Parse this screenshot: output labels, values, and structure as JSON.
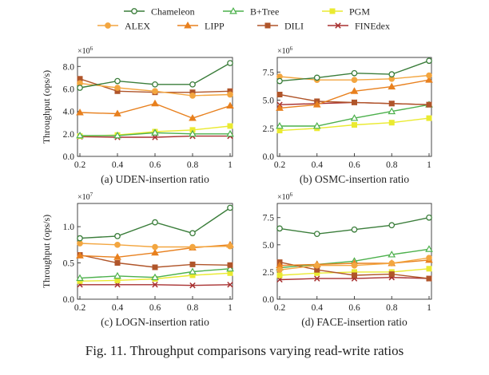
{
  "legend": [
    {
      "name": "Chameleon",
      "color": "#3a7d3a",
      "marker": "circle"
    },
    {
      "name": "B+Tree",
      "color": "#4cb04c",
      "marker": "triangle"
    },
    {
      "name": "PGM",
      "color": "#eaea30",
      "marker": "square"
    },
    {
      "name": "ALEX",
      "color": "#f3a640",
      "marker": "circle"
    },
    {
      "name": "LIPP",
      "color": "#e8801e",
      "marker": "triangle"
    },
    {
      "name": "DILI",
      "color": "#b0552a",
      "marker": "square"
    },
    {
      "name": "FINEdex",
      "color": "#a83030",
      "marker": "x"
    }
  ],
  "caption": "Fig. 11.   Throughput comparisons varying read-write ratios",
  "chart_data": [
    {
      "type": "line",
      "title": "(a) UDEN-insertion ratio",
      "xlabel": "(a) UDEN-insertion ratio",
      "ylabel": "Throughput (ops/s)",
      "multiplier": "×10",
      "exponent": "6",
      "x": [
        0.2,
        0.4,
        0.6,
        0.8,
        1.0
      ],
      "xticks": [
        "0.2",
        "0.4",
        "0.6",
        "0.8",
        "1"
      ],
      "ylim": [
        0,
        8.8
      ],
      "yticks": [
        0,
        2,
        4,
        6,
        8
      ],
      "yticklabels": [
        "0.0",
        "2.0",
        "4.0",
        "6.0",
        "8.0"
      ],
      "series": [
        {
          "name": "Chameleon",
          "values": [
            6.1,
            6.7,
            6.4,
            6.4,
            8.3
          ]
        },
        {
          "name": "B+Tree",
          "values": [
            1.85,
            1.85,
            2.1,
            2.0,
            2.0
          ]
        },
        {
          "name": "PGM",
          "values": [
            1.8,
            1.9,
            2.2,
            2.35,
            2.7
          ]
        },
        {
          "name": "ALEX",
          "values": [
            6.5,
            6.1,
            5.8,
            5.4,
            5.5
          ]
        },
        {
          "name": "LIPP",
          "values": [
            3.9,
            3.8,
            4.7,
            3.4,
            4.5
          ]
        },
        {
          "name": "DILI",
          "values": [
            6.9,
            5.8,
            5.7,
            5.7,
            5.8
          ]
        },
        {
          "name": "FINEdex",
          "values": [
            1.75,
            1.7,
            1.7,
            1.8,
            1.8
          ]
        }
      ]
    },
    {
      "type": "line",
      "title": "(b) OSMC-insertion ratio",
      "xlabel": "(b) OSMC-insertion ratio",
      "ylabel": "",
      "multiplier": "×10",
      "exponent": "6",
      "x": [
        0.2,
        0.4,
        0.6,
        0.8,
        1.0
      ],
      "xticks": [
        "0.2",
        "0.4",
        "0.6",
        "0.8",
        "1"
      ],
      "ylim": [
        0,
        8.8
      ],
      "yticks": [
        0,
        2.5,
        5,
        7.5
      ],
      "yticklabels": [
        "0.0",
        "2.5",
        "5.0",
        "7.5"
      ],
      "series": [
        {
          "name": "Chameleon",
          "values": [
            6.7,
            7.0,
            7.4,
            7.3,
            8.5
          ]
        },
        {
          "name": "B+Tree",
          "values": [
            2.7,
            2.7,
            3.4,
            4.0,
            4.6
          ]
        },
        {
          "name": "PGM",
          "values": [
            2.3,
            2.5,
            2.8,
            3.0,
            3.4
          ]
        },
        {
          "name": "ALEX",
          "values": [
            7.1,
            6.8,
            6.8,
            6.9,
            7.2
          ]
        },
        {
          "name": "LIPP",
          "values": [
            4.3,
            4.6,
            5.8,
            6.2,
            6.8
          ]
        },
        {
          "name": "DILI",
          "values": [
            5.5,
            4.9,
            4.8,
            4.7,
            4.6
          ]
        },
        {
          "name": "FINEdex",
          "values": [
            4.6,
            4.7,
            4.8,
            4.7,
            4.6
          ]
        }
      ]
    },
    {
      "type": "line",
      "title": "(c) LOGN-insertion ratio",
      "xlabel": "(c) LOGN-insertion ratio",
      "ylabel": "Throughput (ops/s)",
      "multiplier": "×10",
      "exponent": "7",
      "x": [
        0.2,
        0.4,
        0.6,
        0.8,
        1.0
      ],
      "xticks": [
        "0.2",
        "0.4",
        "0.6",
        "0.8",
        "1"
      ],
      "ylim": [
        0,
        1.32
      ],
      "yticks": [
        0,
        0.5,
        1.0
      ],
      "yticklabels": [
        "0.0",
        "0.5",
        "1.0"
      ],
      "series": [
        {
          "name": "Chameleon",
          "values": [
            0.84,
            0.87,
            1.06,
            0.91,
            1.26
          ]
        },
        {
          "name": "B+Tree",
          "values": [
            0.29,
            0.32,
            0.3,
            0.38,
            0.42
          ]
        },
        {
          "name": "PGM",
          "values": [
            0.25,
            0.26,
            0.28,
            0.33,
            0.36
          ]
        },
        {
          "name": "ALEX",
          "values": [
            0.77,
            0.75,
            0.72,
            0.72,
            0.73
          ]
        },
        {
          "name": "LIPP",
          "values": [
            0.6,
            0.58,
            0.64,
            0.71,
            0.75
          ]
        },
        {
          "name": "DILI",
          "values": [
            0.61,
            0.5,
            0.44,
            0.48,
            0.47
          ]
        },
        {
          "name": "FINEdex",
          "values": [
            0.2,
            0.2,
            0.2,
            0.19,
            0.2
          ]
        }
      ]
    },
    {
      "type": "line",
      "title": "(d) FACE-insertion ratio",
      "xlabel": "(d) FACE-insertion ratio",
      "ylabel": "",
      "multiplier": "×10",
      "exponent": "6",
      "x": [
        0.2,
        0.4,
        0.6,
        0.8,
        1.0
      ],
      "xticks": [
        "0.2",
        "0.4",
        "0.6",
        "0.8",
        "1"
      ],
      "ylim": [
        0,
        8.8
      ],
      "yticks": [
        0,
        2.5,
        5,
        7.5
      ],
      "yticklabels": [
        "0.0",
        "2.5",
        "5.0",
        "7.5"
      ],
      "series": [
        {
          "name": "Chameleon",
          "values": [
            6.5,
            6.0,
            6.4,
            6.8,
            7.5
          ]
        },
        {
          "name": "B+Tree",
          "values": [
            2.9,
            3.2,
            3.5,
            4.1,
            4.6
          ]
        },
        {
          "name": "PGM",
          "values": [
            2.2,
            2.4,
            2.5,
            2.5,
            2.8
          ]
        },
        {
          "name": "ALEX",
          "values": [
            2.7,
            3.1,
            3.1,
            3.3,
            3.8
          ]
        },
        {
          "name": "LIPP",
          "values": [
            3.1,
            3.2,
            3.3,
            3.3,
            3.6
          ]
        },
        {
          "name": "DILI",
          "values": [
            3.4,
            2.7,
            2.2,
            2.3,
            1.9
          ]
        },
        {
          "name": "FINEdex",
          "values": [
            1.8,
            1.9,
            1.9,
            2.0,
            1.9
          ]
        }
      ]
    }
  ]
}
